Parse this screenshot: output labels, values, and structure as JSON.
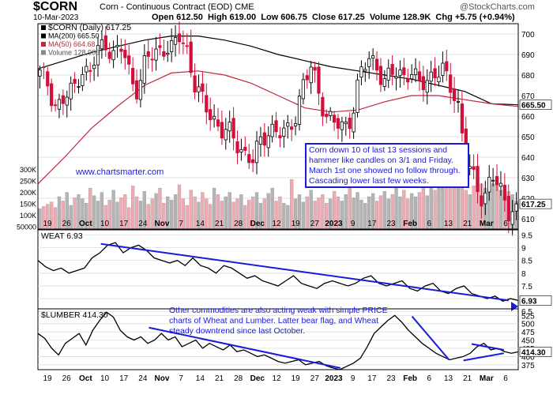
{
  "header": {
    "symbol": "$CORN",
    "description": "Corn - Continuous Contract (EOD)",
    "exchange": "CME",
    "date": "10-Mar-2023",
    "open": "Open 612.50",
    "high": "High 619.00",
    "low": "Low 606.75",
    "close": "Close 617.25",
    "volume": "Volume 128.9K",
    "change": "Chg +5.75 (+0.94%)",
    "brand": "@StockCharts.com"
  },
  "annotations": {
    "callout": "Corn down 10 of last 13 sessions and hammer like candles on 3/1 and Friday. March 1st one showed no follow through. Cascading lower last few weeks.",
    "commodities_note": "Other commodities are also acting weak with simple PRICE charts of Wheat and Lumber. Latter bear flag, and Wheat steady downtrend since last October.",
    "website": "www.chartsmarter.com"
  },
  "colors": {
    "up_candle": "#ffffff",
    "down_candle": "#d0103a",
    "ma200": "#000000",
    "ma50": "#c0283c",
    "volume_up": "#b4b4b4",
    "volume_down": "#f0aab4",
    "trendline": "#1a1adc"
  },
  "chart_data": [
    {
      "id": "corn",
      "type": "candlestick",
      "legend": [
        "$CORN (Daily) 617.25",
        "MA(200) 665.50",
        "MA(50) 664.68",
        "Volume 128,906"
      ],
      "y_ticks": [
        610,
        620,
        630,
        640,
        650,
        660,
        670,
        680,
        690,
        700
      ],
      "ylim": [
        605,
        705
      ],
      "volume_ticks": [
        "300K",
        "250K",
        "200K",
        "150K",
        "100K",
        "50000"
      ],
      "last_price_tag": "617.25",
      "ma200_tag": "665.50",
      "x_labels": [
        "19",
        "26",
        "Oct",
        "10",
        "17",
        "24",
        "Nov",
        "7",
        "14",
        "21",
        "28",
        "Dec",
        "12",
        "19",
        "27",
        "2023",
        "9",
        "17",
        "23",
        "Feb",
        "6",
        "13",
        "21",
        "Mar",
        "6"
      ],
      "ohlc_anchor": [
        [
          680,
          676,
          664,
          668,
          672,
          684,
          679,
          691,
          697,
          689,
          693,
          680
        ],
        [
          673,
          688,
          690,
          695,
          691,
          699,
          692,
          673,
          665,
          660,
          654,
          651
        ],
        [
          647,
          642,
          638,
          648,
          655,
          652,
          650,
          660,
          675,
          683,
          671,
          660
        ],
        [
          656,
          653,
          662,
          680,
          687,
          686,
          676,
          681,
          680,
          683,
          675,
          676
        ],
        [
          683,
          681,
          674,
          665,
          636,
          626,
          619,
          634,
          622,
          614,
          617.25
        ]
      ],
      "ma200": [
        683,
        687,
        691,
        694,
        697,
        699,
        699,
        697,
        694,
        690,
        687,
        684,
        682,
        680,
        678,
        675,
        672,
        666,
        665.5
      ],
      "ma50": [
        627,
        640,
        654,
        665,
        675,
        681,
        682,
        680,
        676,
        670,
        664,
        662,
        663,
        667,
        670,
        670,
        668,
        666,
        664.68
      ],
      "volume": [
        95,
        105,
        115,
        125,
        100,
        150,
        130,
        170,
        110,
        145,
        160,
        140,
        120,
        190,
        155,
        130,
        170,
        110,
        135,
        180,
        125,
        145,
        160,
        100,
        200,
        150,
        130,
        175,
        115,
        140,
        165,
        190,
        120,
        150,
        135,
        160,
        205,
        140,
        110,
        180,
        150,
        125,
        170,
        140,
        115,
        190,
        160,
        130,
        150,
        170,
        125,
        140,
        160,
        110,
        135,
        150,
        170,
        120,
        140,
        165,
        190,
        130,
        150,
        120,
        110,
        230,
        140,
        160,
        125,
        150,
        180,
        130,
        145,
        160,
        120,
        140,
        175,
        150,
        130,
        160,
        200,
        145,
        170,
        135,
        120,
        150,
        165,
        130,
        155,
        175,
        140,
        160,
        210,
        150,
        180,
        140,
        165,
        150,
        170,
        190,
        155,
        200,
        180,
        230,
        250,
        300,
        280,
        260,
        200,
        230,
        180,
        160,
        200,
        240,
        210,
        190,
        180,
        210,
        220,
        180,
        150,
        175,
        160,
        129
      ]
    },
    {
      "id": "wheat",
      "type": "line",
      "legend": "WEAT 6.93",
      "y_ticks": [
        6.5,
        7.0,
        7.5,
        8.0,
        8.5,
        9.0,
        9.5
      ],
      "ylim": [
        6.6,
        9.7
      ],
      "last_value_tag": "6.93",
      "values": [
        8.5,
        8.25,
        8.1,
        8.2,
        8.0,
        8.1,
        8.2,
        8.6,
        8.8,
        9.1,
        9.2,
        8.8,
        9.0,
        9.1,
        8.9,
        8.6,
        8.5,
        8.4,
        8.5,
        8.3,
        8.6,
        8.3,
        8.2,
        8.0,
        8.3,
        8.2,
        8.0,
        7.8,
        7.9,
        7.7,
        7.6,
        7.5,
        7.7,
        7.9,
        7.6,
        7.5,
        7.4,
        7.6,
        7.7,
        7.6,
        7.5,
        7.6,
        7.8,
        7.9,
        7.6,
        7.5,
        7.6,
        7.7,
        7.4,
        7.3,
        7.5,
        7.6,
        7.3,
        7.2,
        7.4,
        7.5,
        7.2,
        7.1,
        7.0,
        7.1,
        6.9,
        7.0,
        6.93
      ],
      "trendlines": [
        [
          [
            0.131,
            9.15
          ],
          [
            0.98,
            6.93
          ]
        ]
      ]
    },
    {
      "id": "lumber",
      "type": "line",
      "legend": "$LUMBER 414.30",
      "y_ticks": [
        375,
        400,
        425,
        450,
        475,
        500,
        525
      ],
      "ylim": [
        360,
        545
      ],
      "last_value_tag": "414.30",
      "values": [
        470,
        455,
        425,
        405,
        440,
        455,
        470,
        435,
        480,
        510,
        535,
        520,
        480,
        460,
        450,
        460,
        440,
        450,
        470,
        450,
        460,
        430,
        440,
        450,
        425,
        440,
        430,
        420,
        435,
        415,
        420,
        410,
        400,
        405,
        395,
        385,
        380,
        385,
        390,
        375,
        380,
        385,
        372,
        365,
        360,
        370,
        380,
        395,
        430,
        470,
        490,
        510,
        525,
        505,
        480,
        460,
        440,
        425,
        410,
        400,
        390,
        395,
        400,
        410,
        430,
        440,
        420,
        425,
        415,
        410,
        414.3
      ],
      "trendlines": [
        [
          [
            0.231,
            488
          ],
          [
            0.63,
            365
          ]
        ],
        [
          [
            0.779,
            522
          ],
          [
            0.856,
            390
          ]
        ],
        [
          [
            0.886,
            388
          ],
          [
            0.97,
            410
          ]
        ],
        [
          [
            0.903,
            438
          ],
          [
            0.97,
            420
          ]
        ]
      ]
    }
  ]
}
